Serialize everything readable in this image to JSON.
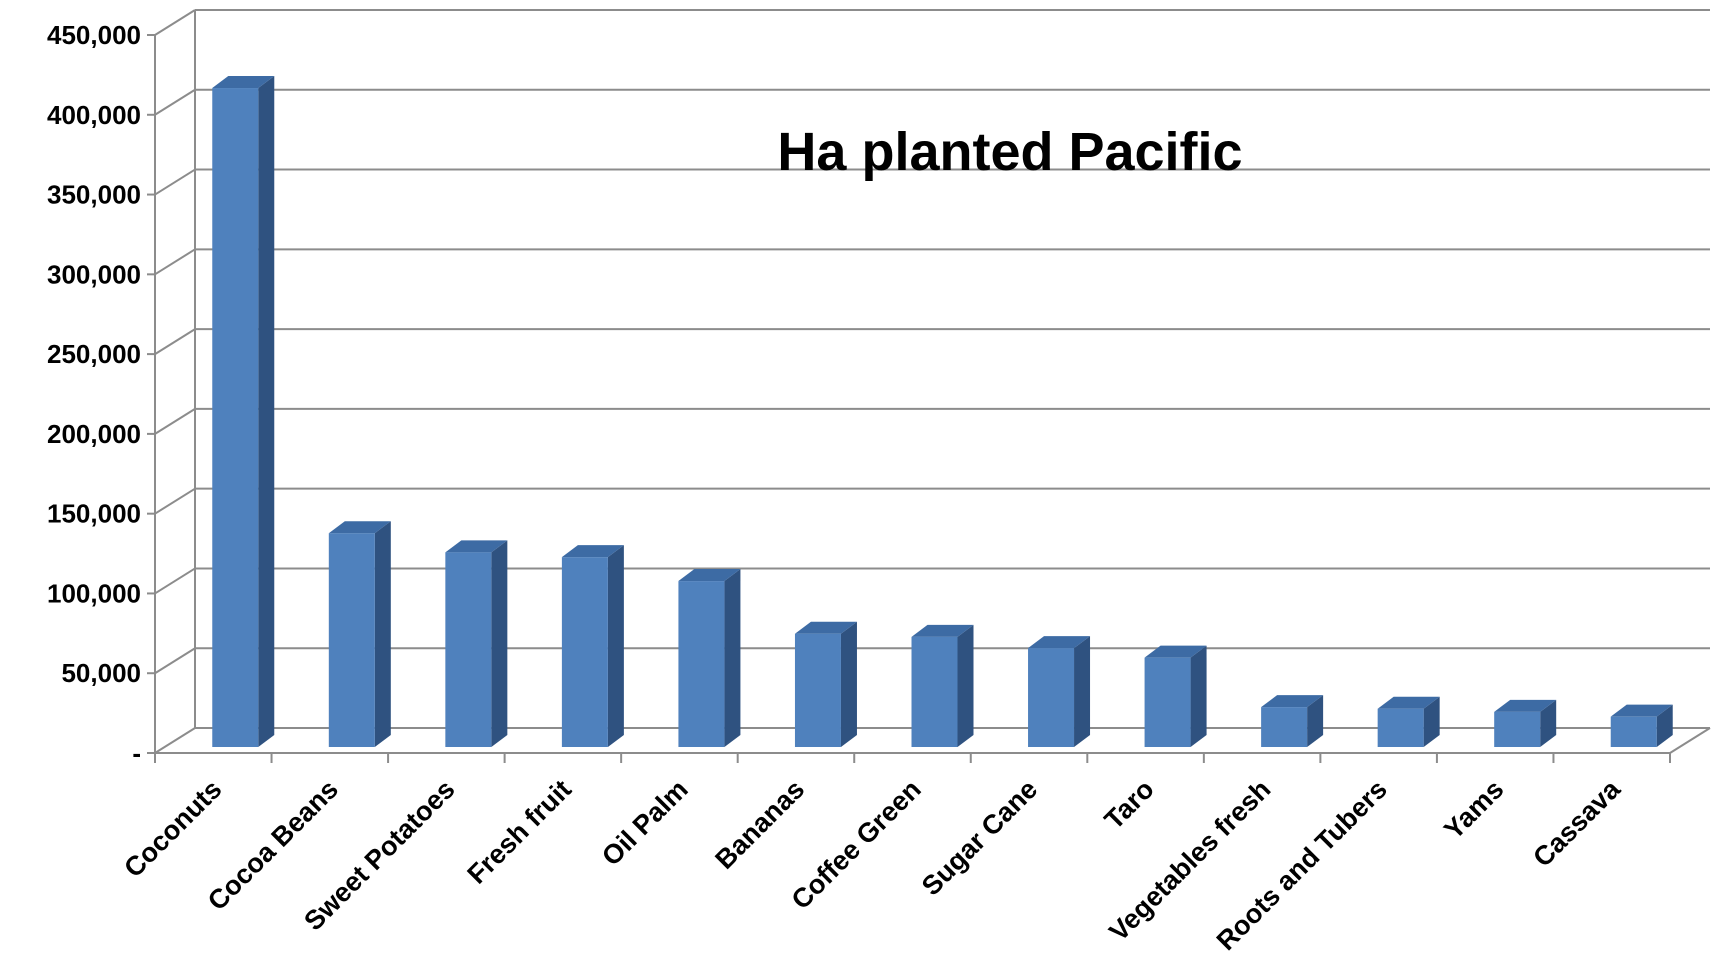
{
  "chart_data": {
    "type": "bar",
    "title": "Ha planted Pacific",
    "xlabel": "",
    "ylabel": "",
    "categories": [
      "Coconuts",
      "Cocoa Beans",
      "Sweet Potatoes",
      "Fresh fruit",
      "Oil Palm",
      "Bananas",
      "Coffee Green",
      "Sugar Cane",
      "Taro",
      "Vegetables fresh",
      "Roots and Tubers",
      "Yams",
      "Cassava"
    ],
    "series": [
      {
        "values": [
          413000,
          134000,
          122000,
          119000,
          104000,
          71000,
          69000,
          62000,
          56000,
          25000,
          24000,
          22000,
          19000
        ]
      }
    ],
    "ylim": [
      0,
      450000
    ],
    "yticks": [
      0,
      50000,
      100000,
      150000,
      200000,
      250000,
      300000,
      350000,
      400000,
      450000
    ],
    "ytick_labels": [
      "-",
      "50,000",
      "100,000",
      "150,000",
      "200,000",
      "250,000",
      "300,000",
      "350,000",
      "400,000",
      "450,000"
    ],
    "grid": true,
    "legend": "none",
    "style": "3d-column",
    "colors": {
      "bar_front": "#4f81bd",
      "bar_side": "#2f5280",
      "bar_top": "#3d6ba4",
      "grid": "#8c8c8c",
      "axis": "#8c8c8c"
    }
  }
}
